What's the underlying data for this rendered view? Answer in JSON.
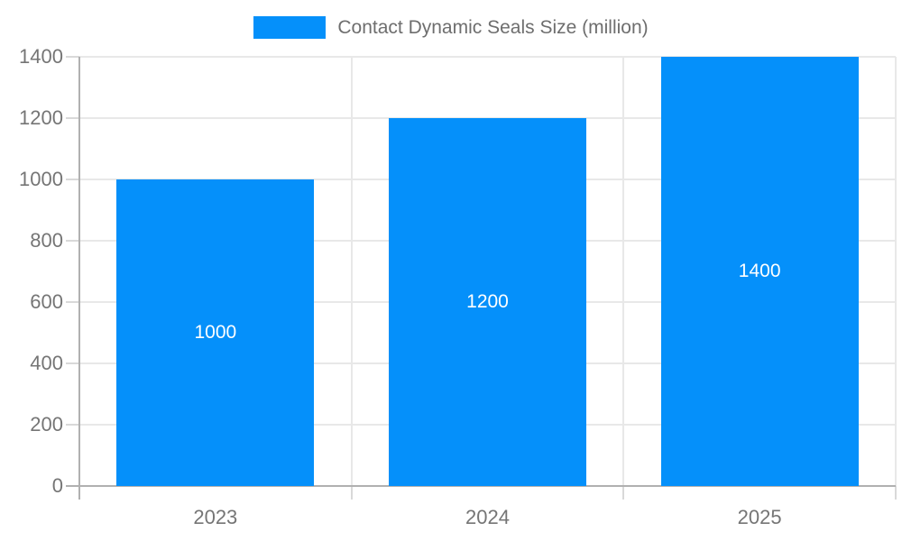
{
  "legend": {
    "label": "Contact Dynamic Seals Size (million)"
  },
  "chart_data": {
    "type": "bar",
    "title": "Contact Dynamic Seals Size (million)",
    "series_name": "Contact Dynamic Seals Size (million)",
    "categories": [
      "2023",
      "2024",
      "2025"
    ],
    "values": [
      1000,
      1200,
      1400
    ],
    "bar_labels": [
      "1000",
      "1200",
      "1400"
    ],
    "xlabel": "",
    "ylabel": "",
    "ylim": [
      0,
      1400
    ],
    "yticks": [
      0,
      200,
      400,
      600,
      800,
      1000,
      1200,
      1400
    ],
    "grid": true,
    "legend_position": "top",
    "colors": {
      "bar": "#0590fa",
      "bar_label": "#ffffff",
      "axis_line": "#b0b0b0",
      "gridline": "#e8e8e8",
      "tick": "#d9d9d9",
      "axis_label": "#757575",
      "legend_text": "#6e6e6e",
      "background": "#ffffff"
    }
  }
}
